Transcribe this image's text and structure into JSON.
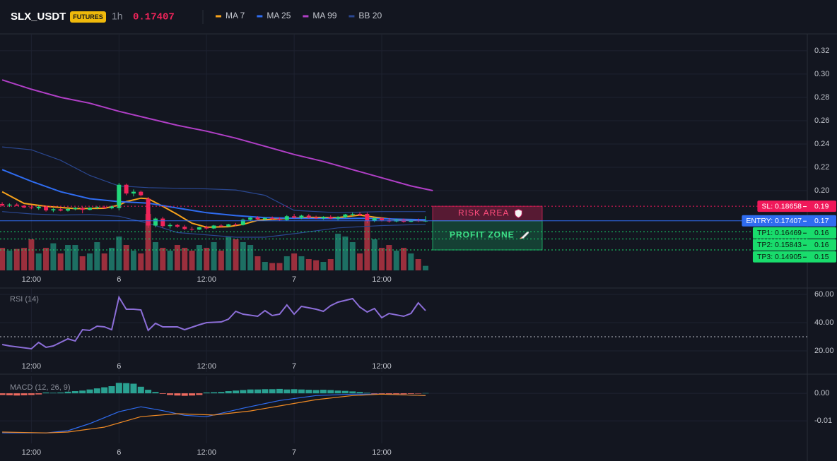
{
  "header": {
    "symbol": "SLX_USDT",
    "badge": "FUTURES",
    "interval": "1h",
    "price": 0.17407
  },
  "chart_data": [
    {
      "type": "candlestick",
      "xlim": [
        -0.3,
        110.3
      ],
      "ylim": [
        0.1315,
        0.3345
      ],
      "xticks": [
        {
          "value": 4,
          "label": "12:00"
        },
        {
          "value": 16,
          "label": "6"
        },
        {
          "value": 28,
          "label": "12:00"
        },
        {
          "value": 40,
          "label": "7"
        },
        {
          "value": 52,
          "label": "12:00"
        }
      ],
      "yticks": [
        {
          "value": 0.2,
          "label": "0.20"
        },
        0.22,
        0.24,
        0.26,
        0.28,
        {
          "value": 0.3,
          "label": "0.30"
        },
        0.32
      ],
      "grid": true,
      "up_color": "#22d77a",
      "down_color": "#f0245a",
      "volume_up_color": "#1d6f63",
      "volume_down_color": "#9b2f3d",
      "volume_lim": [
        0,
        419
      ],
      "x": [
        0,
        1,
        2,
        3,
        4,
        5,
        6,
        7,
        8,
        9,
        10,
        11,
        12,
        13,
        14,
        15,
        16,
        17,
        18,
        19,
        20,
        21,
        22,
        23,
        24,
        25,
        26,
        27,
        28,
        29,
        30,
        31,
        32,
        33,
        34,
        35,
        36,
        37,
        38,
        39,
        40,
        41,
        42,
        43,
        44,
        45,
        46,
        47,
        48,
        49,
        50,
        51,
        52,
        53,
        54,
        55,
        56,
        57,
        58
      ],
      "ohlc": [
        [
          0.1885,
          0.19,
          0.1865,
          0.1872
        ],
        [
          0.1872,
          0.189,
          0.186,
          0.188
        ],
        [
          0.188,
          0.1892,
          0.1868,
          0.187
        ],
        [
          0.187,
          0.1878,
          0.185,
          0.1855
        ],
        [
          0.1855,
          0.1875,
          0.184,
          0.1848
        ],
        [
          0.1848,
          0.187,
          0.1835,
          0.1862
        ],
        [
          0.1862,
          0.1872,
          0.182,
          0.183
        ],
        [
          0.183,
          0.185,
          0.1815,
          0.184
        ],
        [
          0.184,
          0.1852,
          0.1822,
          0.1828
        ],
        [
          0.1828,
          0.1848,
          0.182,
          0.1842
        ],
        [
          0.1842,
          0.186,
          0.183,
          0.185
        ],
        [
          0.185,
          0.1862,
          0.1805,
          0.1835
        ],
        [
          0.1835,
          0.1858,
          0.183,
          0.1852
        ],
        [
          0.1852,
          0.1866,
          0.184,
          0.1858
        ],
        [
          0.1858,
          0.187,
          0.1845,
          0.1848
        ],
        [
          0.1848,
          0.187,
          0.184,
          0.1865
        ],
        [
          0.185,
          0.2065,
          0.183,
          0.205
        ],
        [
          0.205,
          0.206,
          0.196,
          0.1975
        ],
        [
          0.1975,
          0.201,
          0.195,
          0.199
        ],
        [
          0.199,
          0.2,
          0.195,
          0.196
        ],
        [
          0.193,
          0.1945,
          0.168,
          0.17
        ],
        [
          0.17,
          0.177,
          0.1685,
          0.176
        ],
        [
          0.176,
          0.1775,
          0.168,
          0.1695
        ],
        [
          0.1695,
          0.172,
          0.1675,
          0.1705
        ],
        [
          0.1705,
          0.1715,
          0.168,
          0.169
        ],
        [
          0.169,
          0.1705,
          0.166,
          0.167
        ],
        [
          0.167,
          0.169,
          0.1655,
          0.1665
        ],
        [
          0.1665,
          0.169,
          0.166,
          0.1685
        ],
        [
          0.1685,
          0.17,
          0.1665,
          0.1675
        ],
        [
          0.1675,
          0.1705,
          0.167,
          0.17
        ],
        [
          0.17,
          0.1712,
          0.1685,
          0.1692
        ],
        [
          0.1692,
          0.1715,
          0.1688,
          0.171
        ],
        [
          0.171,
          0.1722,
          0.1695,
          0.1705
        ],
        [
          0.1705,
          0.176,
          0.17,
          0.175
        ],
        [
          0.175,
          0.1775,
          0.174,
          0.1768
        ],
        [
          0.1768,
          0.178,
          0.1745,
          0.1755
        ],
        [
          0.1755,
          0.1772,
          0.174,
          0.1765
        ],
        [
          0.1765,
          0.1778,
          0.175,
          0.1758
        ],
        [
          0.1758,
          0.177,
          0.174,
          0.1748
        ],
        [
          0.1748,
          0.179,
          0.174,
          0.178
        ],
        [
          0.178,
          0.18,
          0.176,
          0.1768
        ],
        [
          0.1768,
          0.1792,
          0.1755,
          0.1785
        ],
        [
          0.1785,
          0.1798,
          0.176,
          0.177
        ],
        [
          0.177,
          0.1785,
          0.1755,
          0.1762
        ],
        [
          0.1762,
          0.178,
          0.175,
          0.1775
        ],
        [
          0.1775,
          0.1788,
          0.1755,
          0.176
        ],
        [
          0.176,
          0.178,
          0.1745,
          0.1772
        ],
        [
          0.1772,
          0.18,
          0.1765,
          0.1795
        ],
        [
          0.1795,
          0.1812,
          0.178,
          0.18
        ],
        [
          0.18,
          0.1815,
          0.1785,
          0.179
        ],
        [
          0.18,
          0.1812,
          0.172,
          0.174
        ],
        [
          0.174,
          0.177,
          0.173,
          0.1762
        ],
        [
          0.1762,
          0.177,
          0.1735,
          0.1745
        ],
        [
          0.1745,
          0.1765,
          0.1725,
          0.1735
        ],
        [
          0.1735,
          0.1758,
          0.1728,
          0.175
        ],
        [
          0.175,
          0.176,
          0.1725,
          0.1732
        ],
        [
          0.1732,
          0.1752,
          0.1728,
          0.1745
        ],
        [
          0.1745,
          0.176,
          0.173,
          0.1738
        ],
        [
          0.1738,
          0.178,
          0.173,
          0.17407
        ]
      ],
      "volume": [
        40,
        35,
        38,
        40,
        55,
        30,
        40,
        48,
        30,
        45,
        45,
        25,
        30,
        50,
        30,
        40,
        60,
        45,
        35,
        30,
        100,
        50,
        40,
        35,
        45,
        40,
        35,
        45,
        40,
        50,
        35,
        60,
        55,
        50,
        45,
        25,
        15,
        13,
        13,
        25,
        30,
        25,
        20,
        18,
        15,
        20,
        65,
        60,
        50,
        30,
        88,
        55,
        40,
        45,
        35,
        40,
        30,
        20,
        8
      ],
      "series": [
        {
          "name": "MA 7",
          "color": "#f7a21b",
          "x": [
            0,
            3,
            6,
            10,
            14,
            16,
            17,
            19,
            20,
            22,
            24,
            26,
            28,
            31,
            33,
            35,
            38,
            42,
            46,
            49,
            51,
            54,
            58
          ],
          "values": [
            0.199,
            0.189,
            0.1865,
            0.1845,
            0.1848,
            0.1875,
            0.1905,
            0.1935,
            0.193,
            0.1865,
            0.1795,
            0.172,
            0.1685,
            0.169,
            0.171,
            0.1745,
            0.1758,
            0.177,
            0.1768,
            0.179,
            0.1772,
            0.175,
            0.1742
          ]
        },
        {
          "name": "MA 25",
          "color": "#2f6cf0",
          "x": [
            0,
            4,
            8,
            12,
            16,
            20,
            24,
            28,
            32,
            36,
            40,
            46,
            50,
            54,
            58
          ],
          "values": [
            0.218,
            0.208,
            0.199,
            0.193,
            0.1905,
            0.1892,
            0.185,
            0.181,
            0.1785,
            0.1768,
            0.1762,
            0.176,
            0.1762,
            0.1755,
            0.175
          ]
        },
        {
          "name": "MA 99",
          "color": "#b03fc6",
          "x": [
            0,
            4,
            8,
            12,
            16,
            20,
            24,
            28,
            32,
            36,
            40,
            44,
            48,
            52,
            56,
            59
          ],
          "values": [
            0.295,
            0.287,
            0.28,
            0.275,
            0.268,
            0.262,
            0.256,
            0.251,
            0.245,
            0.238,
            0.231,
            0.225,
            0.218,
            0.211,
            0.204,
            0.2
          ]
        },
        {
          "name": "BB 20",
          "color": "#2a4790",
          "x": [
            0,
            4,
            8,
            12,
            16,
            20,
            24,
            28,
            32,
            36,
            40,
            46,
            52,
            58
          ],
          "upper": [
            0.2375,
            0.235,
            0.226,
            0.213,
            0.204,
            0.2025,
            0.202,
            0.2015,
            0.2005,
            0.196,
            0.183,
            0.181,
            0.182,
            0.182
          ],
          "lower": [
            0.182,
            0.18,
            0.179,
            0.1795,
            0.178,
            0.172,
            0.164,
            0.162,
            0.16,
            0.16,
            0.163,
            0.168,
            0.17,
            0.171
          ]
        }
      ],
      "levels": [
        {
          "label": "SL: 0.18658",
          "value": 0.18658,
          "axis_label": "0.19",
          "color": "#f0185a",
          "line_style": "dotted"
        },
        {
          "label": "ENTRY: 0.17407",
          "value": 0.17407,
          "axis_label": "0.17",
          "color": "#2f6cf0",
          "line_style": "solid"
        },
        {
          "label": "TP1: 0.16469",
          "value": 0.16469,
          "axis_label": "0.16",
          "color": "#19dc6c",
          "line_style": "dotted"
        },
        {
          "label": "TP2: 0.15843",
          "value": 0.15843,
          "axis_label": "0.16",
          "color": "#19dc6c",
          "line_style": "dotted"
        },
        {
          "label": "TP3: 0.14905",
          "value": 0.14905,
          "axis_label": "0.15",
          "color": "#19dc6c",
          "line_style": "dotted"
        }
      ],
      "zones": [
        {
          "label": "RISK AREA",
          "color": "#e8265e"
        },
        {
          "label": "PROFIT ZONE",
          "color": "#22d77a"
        }
      ]
    },
    {
      "type": "line",
      "title": "RSI (14)",
      "xlim": [
        -0.3,
        110.3
      ],
      "ylim": [
        5,
        64.5
      ],
      "xticks": [
        {
          "value": 4,
          "label": "12:00"
        },
        {
          "value": 16,
          "label": "6"
        },
        {
          "value": 28,
          "label": "12:00"
        },
        {
          "value": 40,
          "label": "7"
        },
        {
          "value": 52,
          "label": "12:00"
        }
      ],
      "yticks": [
        {
          "value": 20,
          "label": "20.00"
        },
        {
          "value": 40,
          "label": "40.00"
        },
        {
          "value": 60,
          "label": "60.00"
        }
      ],
      "reference_line": 30,
      "color": "#8c6ed8",
      "x": [
        0,
        1,
        4,
        5,
        6,
        7,
        9,
        10,
        11,
        12,
        13,
        14,
        15,
        16,
        17,
        18,
        19,
        20,
        21,
        22,
        24,
        25,
        27,
        28,
        30,
        31,
        32,
        33,
        35,
        36,
        37,
        38,
        39,
        40,
        41,
        43,
        44,
        45,
        46,
        48,
        49,
        50,
        51,
        52,
        53,
        55,
        56,
        57,
        58
      ],
      "values": [
        24.5,
        23.5,
        21.5,
        26,
        22.5,
        23.5,
        28.5,
        27,
        35,
        34.5,
        37.5,
        37,
        35,
        58,
        49.5,
        49.5,
        49,
        34.5,
        39.5,
        37,
        37,
        35,
        38.5,
        40,
        40.5,
        42.5,
        48,
        46,
        44.5,
        48.5,
        45,
        46,
        52.5,
        46,
        51.5,
        49.5,
        48,
        52,
        54.5,
        57,
        51,
        47.5,
        50,
        43.5,
        46.5,
        44.5,
        46.5,
        54,
        48.5
      ]
    },
    {
      "type": "macd",
      "title": "MACD (12, 26, 9)",
      "xlim": [
        -0.3,
        110.3
      ],
      "ylim": [
        -0.0182,
        0.0062
      ],
      "xticks": [
        {
          "value": 4,
          "label": "12:00"
        },
        {
          "value": 16,
          "label": "6"
        },
        {
          "value": 28,
          "label": "12:00"
        },
        {
          "value": 40,
          "label": "7"
        },
        {
          "value": 52,
          "label": "12:00"
        }
      ],
      "yticks": [
        -0.01,
        {
          "value": 0,
          "label": "0.00"
        }
      ],
      "lines": [
        {
          "color": "#2f6cf0",
          "x": [
            0,
            6,
            9,
            12,
            16,
            19,
            22,
            25,
            28,
            33,
            38,
            43,
            48,
            52,
            58
          ],
          "values": [
            -0.0144,
            -0.0144,
            -0.0136,
            -0.011,
            -0.0067,
            -0.0049,
            -0.0063,
            -0.008,
            -0.0085,
            -0.0054,
            -0.0026,
            -0.0008,
            -0.0003,
            -0.0003,
            -0.0008
          ]
        },
        {
          "color": "#f08a24",
          "x": [
            0,
            6,
            9,
            14,
            19,
            24,
            29,
            34,
            38,
            43,
            48,
            52,
            58
          ],
          "values": [
            -0.0141,
            -0.0144,
            -0.0141,
            -0.0123,
            -0.0085,
            -0.0074,
            -0.0079,
            -0.0064,
            -0.0046,
            -0.0023,
            -0.0008,
            -0.0003,
            -0.0008
          ]
        }
      ],
      "histogram": {
        "up_color": "#2aa191",
        "down_color": "#ef6a5f",
        "x": [
          0,
          1,
          2,
          3,
          4,
          5,
          6,
          7,
          8,
          9,
          10,
          11,
          12,
          13,
          14,
          15,
          16,
          17,
          18,
          19,
          20,
          21,
          22,
          23,
          24,
          25,
          26,
          27,
          28,
          29,
          30,
          31,
          32,
          33,
          34,
          35,
          36,
          37,
          38,
          39,
          40,
          41,
          42,
          43,
          44,
          45,
          46,
          47,
          48,
          49,
          50,
          51,
          52,
          53,
          54,
          55,
          56,
          57,
          58
        ],
        "values": [
          -0.0006,
          -0.0007,
          -0.0008,
          -0.0007,
          -0.0006,
          -0.0004,
          0.0003,
          0.0002,
          0.0003,
          0.0006,
          0.0008,
          0.001,
          0.0014,
          0.0018,
          0.0022,
          0.0026,
          0.0038,
          0.0037,
          0.0035,
          0.0024,
          0.0013,
          0.0005,
          -0.0002,
          -0.0006,
          -0.0008,
          -0.0009,
          -0.0008,
          -0.0006,
          0.0003,
          0.0004,
          0.0005,
          0.0008,
          0.001,
          0.0012,
          0.0014,
          0.0014,
          0.0015,
          0.0015,
          0.0016,
          0.0014,
          0.0015,
          0.0014,
          0.0013,
          0.0012,
          0.0013,
          0.0012,
          0.001,
          0.0009,
          0.0007,
          0.0005,
          0.0002,
          -0.0002,
          -0.0003,
          -0.0003,
          -0.0003,
          -0.0003,
          -0.0002,
          -0.0001,
          0.0001
        ]
      }
    }
  ]
}
